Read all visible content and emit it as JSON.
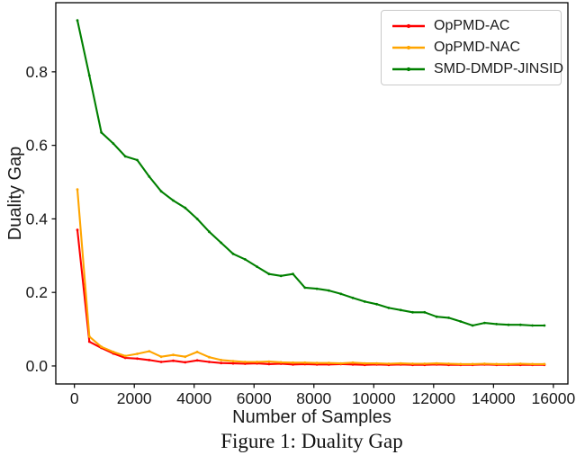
{
  "figure": {
    "caption": "Figure 1: Duality Gap"
  },
  "chart_data": {
    "type": "line",
    "title": "",
    "xlabel": "Number of Samples",
    "ylabel": "Duality Gap",
    "grid": false,
    "legend_position": "upper right",
    "xlim": [
      -622,
      16485
    ],
    "ylim": [
      -0.049,
      0.988
    ],
    "x_ticks": [
      0,
      2000,
      4000,
      6000,
      8000,
      10000,
      12000,
      14000,
      16000
    ],
    "y_ticks": [
      0.0,
      0.2,
      0.4,
      0.6,
      0.8
    ],
    "x": [
      100,
      500,
      900,
      1300,
      1700,
      2100,
      2500,
      2900,
      3300,
      3700,
      4100,
      4500,
      4900,
      5300,
      5700,
      6100,
      6500,
      6900,
      7300,
      7700,
      8100,
      8500,
      8900,
      9300,
      9700,
      10100,
      10500,
      10900,
      11300,
      11700,
      12100,
      12500,
      12900,
      13300,
      13700,
      14100,
      14500,
      14900,
      15300,
      15700
    ],
    "series": [
      {
        "name": "OpPMD-AC",
        "color": "#ff0000",
        "values": [
          0.37,
          0.066,
          0.049,
          0.034,
          0.022,
          0.02,
          0.016,
          0.011,
          0.014,
          0.01,
          0.015,
          0.011,
          0.008,
          0.007,
          0.006,
          0.007,
          0.005,
          0.006,
          0.004,
          0.005,
          0.004,
          0.004,
          0.005,
          0.004,
          0.003,
          0.004,
          0.003,
          0.004,
          0.003,
          0.003,
          0.004,
          0.003,
          0.003,
          0.003,
          0.004,
          0.003,
          0.003,
          0.003,
          0.003,
          0.003
        ]
      },
      {
        "name": "OpPMD-NAC",
        "color": "#ffa500",
        "values": [
          0.48,
          0.08,
          0.052,
          0.038,
          0.027,
          0.033,
          0.04,
          0.025,
          0.03,
          0.025,
          0.038,
          0.024,
          0.016,
          0.013,
          0.011,
          0.011,
          0.012,
          0.01,
          0.009,
          0.009,
          0.008,
          0.008,
          0.007,
          0.009,
          0.007,
          0.007,
          0.006,
          0.007,
          0.006,
          0.006,
          0.007,
          0.006,
          0.005,
          0.005,
          0.006,
          0.005,
          0.005,
          0.006,
          0.005,
          0.005
        ]
      },
      {
        "name": "SMD-DMDP-JINSID",
        "color": "#008000",
        "values": [
          0.94,
          0.79,
          0.635,
          0.605,
          0.57,
          0.56,
          0.515,
          0.475,
          0.45,
          0.43,
          0.4,
          0.365,
          0.335,
          0.305,
          0.29,
          0.27,
          0.25,
          0.245,
          0.25,
          0.213,
          0.21,
          0.205,
          0.196,
          0.185,
          0.175,
          0.168,
          0.158,
          0.152,
          0.146,
          0.146,
          0.134,
          0.131,
          0.121,
          0.11,
          0.117,
          0.114,
          0.112,
          0.112,
          0.11,
          0.11
        ]
      }
    ]
  }
}
